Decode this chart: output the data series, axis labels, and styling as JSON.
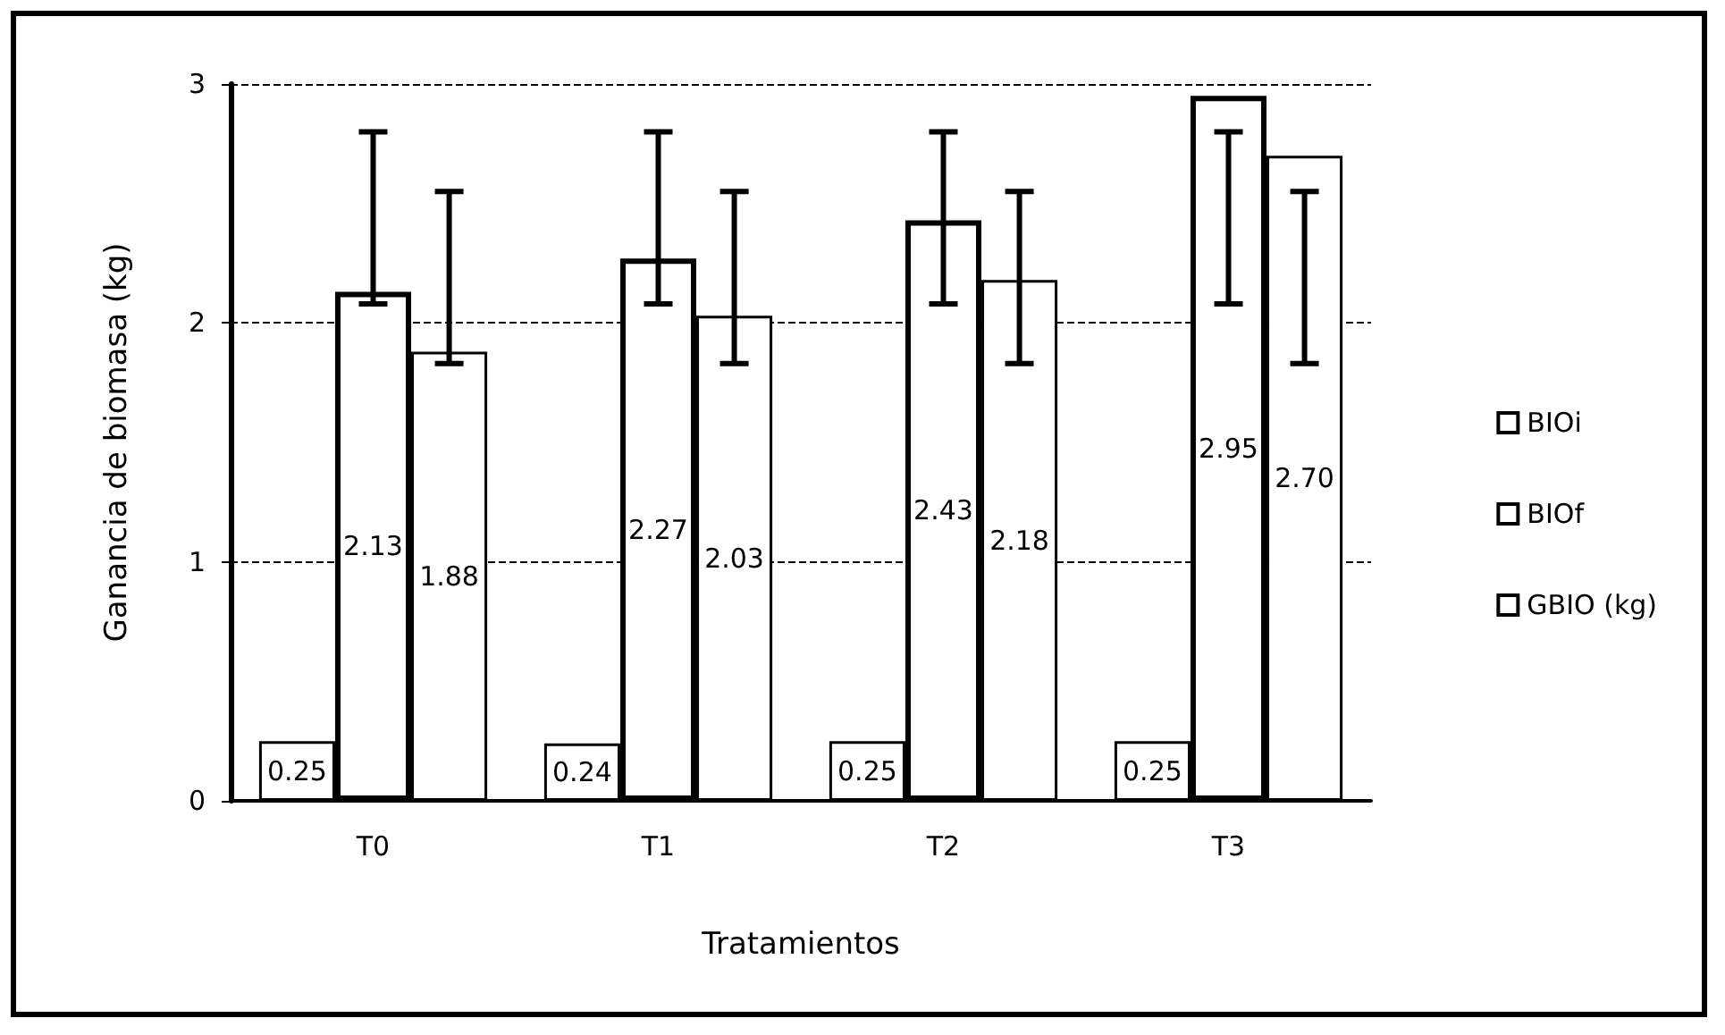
{
  "chart_data": {
    "type": "bar",
    "xlabel": "Tratamientos",
    "ylabel": "Ganancia de biomasa (kg)",
    "categories": [
      "T0",
      "T1",
      "T2",
      "T3"
    ],
    "ylim": [
      0,
      3
    ],
    "yticks": [
      0,
      1,
      2,
      3
    ],
    "grid": "y",
    "legend": "right",
    "series": [
      {
        "name": "BIOi",
        "color": "#ffffff",
        "values": [
          0.25,
          0.24,
          0.25,
          0.25
        ],
        "value_labels": [
          "0.25",
          "0.24",
          "0.25",
          "0.25"
        ]
      },
      {
        "name": "BIOf",
        "color": "#ffffff",
        "values": [
          2.13,
          2.27,
          2.43,
          2.95
        ],
        "value_labels": [
          "2.13",
          "2.27",
          "2.43",
          "2.95"
        ],
        "errors": [
          [
            2.08,
            2.8
          ],
          [
            2.08,
            2.8
          ],
          [
            2.08,
            2.8
          ],
          [
            2.08,
            2.8
          ]
        ]
      },
      {
        "name": "GBIO (kg)",
        "color": "#ffffff",
        "values": [
          1.88,
          2.03,
          2.18,
          2.7
        ],
        "value_labels": [
          "1.88",
          "2.03",
          "2.18",
          "2.70"
        ],
        "errors": [
          [
            1.83,
            2.55
          ],
          [
            1.83,
            2.55
          ],
          [
            1.83,
            2.55
          ],
          [
            1.83,
            2.55
          ]
        ]
      }
    ]
  }
}
